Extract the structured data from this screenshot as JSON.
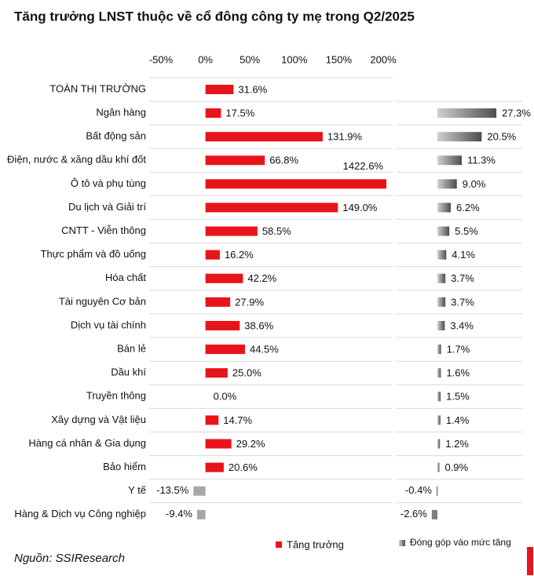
{
  "chart_data": {
    "type": "bar",
    "orientation": "horizontal",
    "title": "Tăng trưởng LNST thuộc về cổ đông công ty mẹ trong Q2/2025",
    "source": "Nguồn: SSIResearch",
    "categories": [
      "TOÀN THỊ TRƯỜNG",
      "Ngân hàng",
      "Bất động sản",
      "Điện, nước & xăng dầu khí đốt",
      "Ô tô và phụ tùng",
      "Du lịch và Giải trí",
      "CNTT - Viễn thông",
      "Thực phẩm và đồ uống",
      "Hóa chất",
      "Tài nguyên Cơ bản",
      "Dịch vụ tài chính",
      "Bán lẻ",
      "Dầu khí",
      "Truyền thông",
      "Xây dựng và Vật liệu",
      "Hàng cá nhân & Gia dụng",
      "Bảo hiểm",
      "Y tế",
      "Hàng & Dịch vụ Công nghiệp"
    ],
    "xlim": [
      -50,
      200
    ],
    "xticks": [
      {
        "value": -50,
        "label": "-50%"
      },
      {
        "value": 0,
        "label": "0%"
      },
      {
        "value": 50,
        "label": "50%"
      },
      {
        "value": 100,
        "label": "100%"
      },
      {
        "value": 150,
        "label": "150%"
      },
      {
        "value": 200,
        "label": "200%"
      }
    ],
    "grid": true,
    "series": [
      {
        "name": "Tăng trưởng",
        "color": "#e8141b",
        "negative_color": "#a6a6a6",
        "values": [
          31.6,
          17.5,
          131.9,
          66.8,
          1422.6,
          149.0,
          58.5,
          16.2,
          42.2,
          27.9,
          38.6,
          44.5,
          25.0,
          0.0,
          14.7,
          29.2,
          20.6,
          -13.5,
          -9.4
        ],
        "value_labels": [
          "31.6%",
          "17.5%",
          "131.9%",
          "66.8%",
          "1422.6%",
          "149.0%",
          "58.5%",
          "16.2%",
          "42.2%",
          "27.9%",
          "38.6%",
          "44.5%",
          "25.0%",
          "0.0%",
          "14.7%",
          "29.2%",
          "20.6%",
          "-13.5%",
          "-9.4%"
        ]
      },
      {
        "name": "Đóng góp vào mức tăng",
        "color": "#7f7f7f",
        "axis": "x2",
        "values": [
          null,
          27.3,
          20.5,
          11.3,
          9.0,
          6.2,
          5.5,
          4.1,
          3.7,
          3.7,
          3.4,
          1.7,
          1.6,
          1.5,
          1.4,
          1.2,
          0.9,
          -0.4,
          -2.6
        ],
        "value_labels": [
          null,
          "27.3%",
          "20.5%",
          "11.3%",
          "9.0%",
          "6.2%",
          "5.5%",
          "4.1%",
          "3.7%",
          "3.7%",
          "3.4%",
          "1.7%",
          "1.6%",
          "1.5%",
          "1.4%",
          "1.2%",
          "0.9%",
          "-0.4%",
          "-2.6%"
        ]
      }
    ]
  }
}
